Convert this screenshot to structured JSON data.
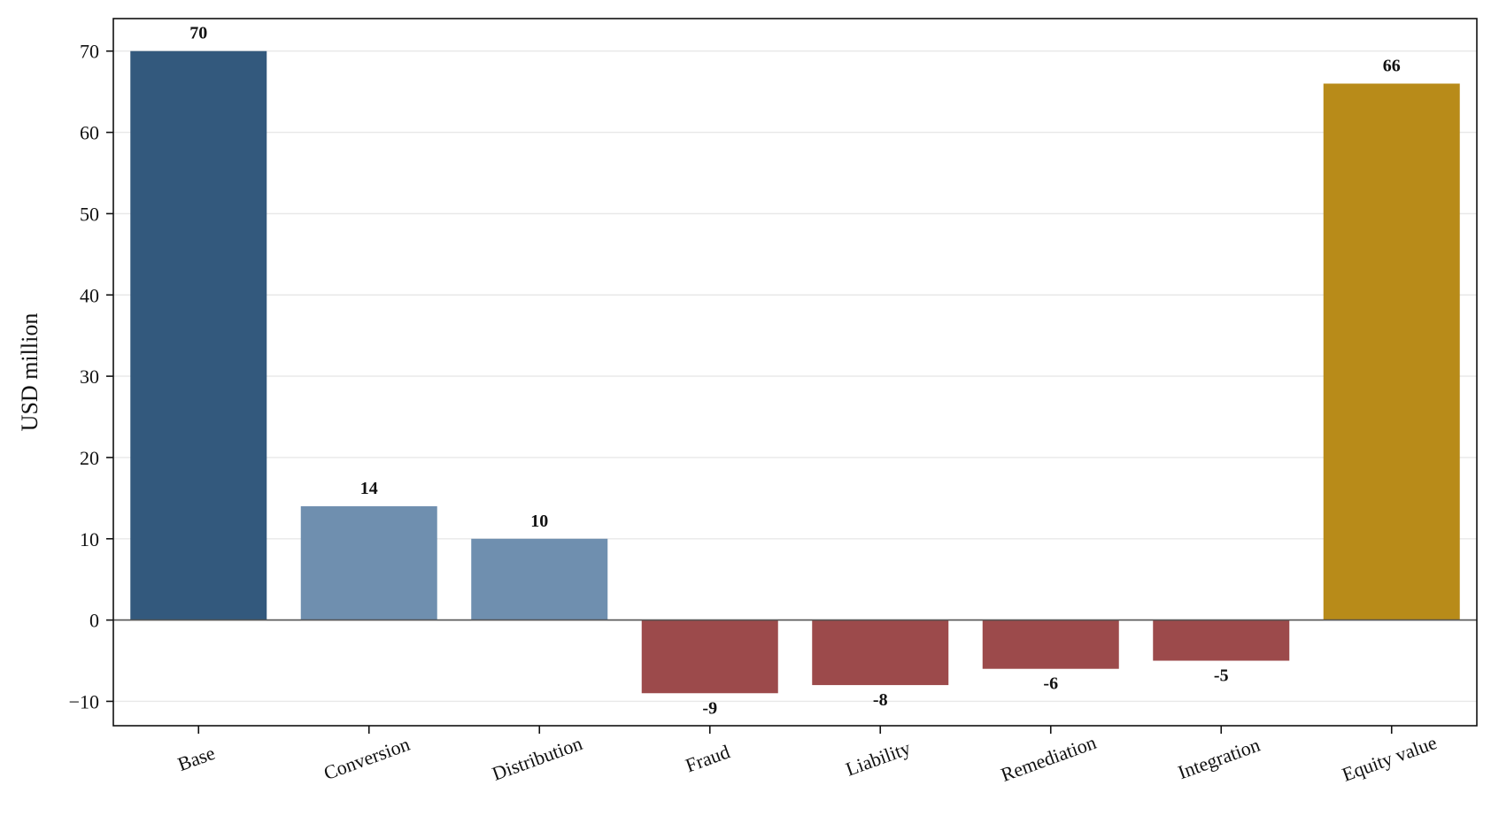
{
  "chart_data": {
    "type": "bar",
    "title": "",
    "xlabel": "",
    "ylabel": "USD million",
    "ylim": [
      -13,
      74
    ],
    "yticks": [
      -10,
      0,
      10,
      20,
      30,
      40,
      50,
      60,
      70
    ],
    "ytick_labels": [
      "−10",
      "0",
      "10",
      "20",
      "30",
      "40",
      "50",
      "60",
      "70"
    ],
    "grid": "horizontal",
    "legend": "none",
    "categories": [
      "Base",
      "Conversion",
      "Distribution",
      "Fraud",
      "Liability",
      "Remediation",
      "Integration",
      "Equity value"
    ],
    "values": [
      70,
      14,
      10,
      -9,
      -8,
      -6,
      -5,
      66
    ],
    "value_labels": [
      "70",
      "14",
      "10",
      "-9",
      "-8",
      "-6",
      "-5",
      "66"
    ],
    "colors": {
      "base": "#33597d",
      "positive": "#6f8faf",
      "negative": "#9c4a4b",
      "total": "#b88b19",
      "grid": "#e8e8e8",
      "zero_line": "#555555"
    },
    "bar_color_keys": [
      "base",
      "positive",
      "positive",
      "negative",
      "negative",
      "negative",
      "negative",
      "total"
    ]
  }
}
